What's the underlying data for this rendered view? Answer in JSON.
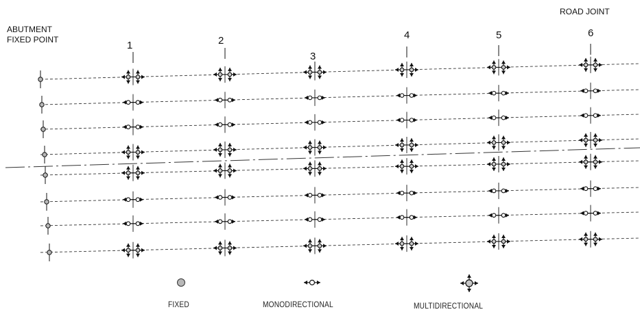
{
  "labels": {
    "abutment_line1": "ABUTMENT",
    "abutment_line2": "FIXED POINT",
    "road_joint": "ROAD JOINT"
  },
  "piers": [
    "1",
    "2",
    "3",
    "4",
    "5",
    "6"
  ],
  "girder_rows": 8,
  "bearing_layout": [
    [
      "multi",
      "multi",
      "multi",
      "multi",
      "multi",
      "multi"
    ],
    [
      "mono",
      "mono",
      "mono",
      "mono",
      "mono",
      "mono"
    ],
    [
      "mono",
      "mono",
      "mono",
      "mono",
      "mono",
      "mono"
    ],
    [
      "multi",
      "multi",
      "multi",
      "multi",
      "multi",
      "multi"
    ],
    [
      "multi",
      "multi",
      "multi",
      "multi",
      "multi",
      "multi"
    ],
    [
      "mono",
      "mono",
      "mono",
      "mono",
      "mono",
      "mono"
    ],
    [
      "mono",
      "mono",
      "mono",
      "mono",
      "mono",
      "mono"
    ],
    [
      "multi",
      "multi",
      "multi",
      "multi",
      "multi",
      "multi"
    ]
  ],
  "legend": {
    "fixed": "FIXED",
    "monodirectional": "MONODIRECTIONAL",
    "multidirectional": "MULTIDIRECTIONAL"
  },
  "colors": {
    "ink": "#111111",
    "line": "#333333",
    "fixed_fill": "#b8b8b8",
    "multi_fill": "#c8c8c8"
  }
}
